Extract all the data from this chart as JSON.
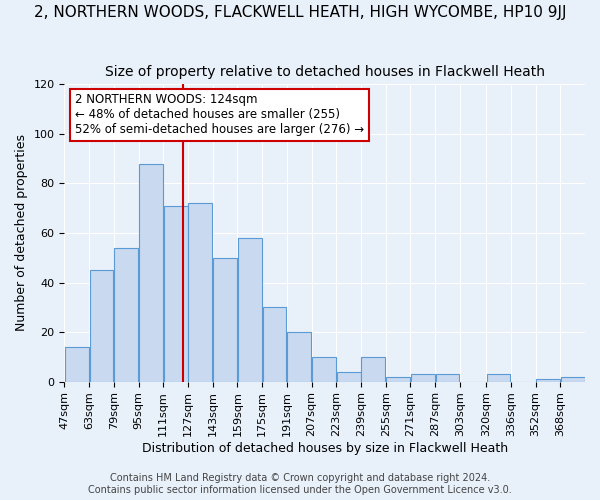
{
  "title": "2, NORTHERN WOODS, FLACKWELL HEATH, HIGH WYCOMBE, HP10 9JJ",
  "subtitle": "Size of property relative to detached houses in Flackwell Heath",
  "xlabel": "Distribution of detached houses by size in Flackwell Heath",
  "ylabel": "Number of detached properties",
  "bin_labels": [
    "47sqm",
    "63sqm",
    "79sqm",
    "95sqm",
    "111sqm",
    "127sqm",
    "143sqm",
    "159sqm",
    "175sqm",
    "191sqm",
    "207sqm",
    "223sqm",
    "239sqm",
    "255sqm",
    "271sqm",
    "287sqm",
    "303sqm",
    "320sqm",
    "336sqm",
    "352sqm",
    "368sqm"
  ],
  "bin_edges": [
    47,
    63,
    79,
    95,
    111,
    127,
    143,
    159,
    175,
    191,
    207,
    223,
    239,
    255,
    271,
    287,
    303,
    320,
    336,
    352,
    368,
    384
  ],
  "bar_heights": [
    14,
    45,
    54,
    88,
    71,
    72,
    50,
    58,
    30,
    20,
    10,
    4,
    10,
    2,
    3,
    3,
    0,
    3,
    0,
    1,
    2
  ],
  "bar_face_color": "#c8d9f0",
  "bar_edge_color": "#5b9bd5",
  "vline_x": 124,
  "vline_color": "#cc0000",
  "annotation_title": "2 NORTHERN WOODS: 124sqm",
  "annotation_line1": "← 48% of detached houses are smaller (255)",
  "annotation_line2": "52% of semi-detached houses are larger (276) →",
  "annotation_box_color": "#ffffff",
  "annotation_box_edge": "#cc0000",
  "ylim": [
    0,
    120
  ],
  "yticks": [
    0,
    20,
    40,
    60,
    80,
    100,
    120
  ],
  "footer1": "Contains HM Land Registry data © Crown copyright and database right 2024.",
  "footer2": "Contains public sector information licensed under the Open Government Licence v3.0.",
  "bg_color": "#e8f0fa",
  "plot_bg_color": "#e8f0fa",
  "title_fontsize": 11,
  "subtitle_fontsize": 10,
  "axis_label_fontsize": 9,
  "tick_fontsize": 8,
  "footer_fontsize": 7
}
